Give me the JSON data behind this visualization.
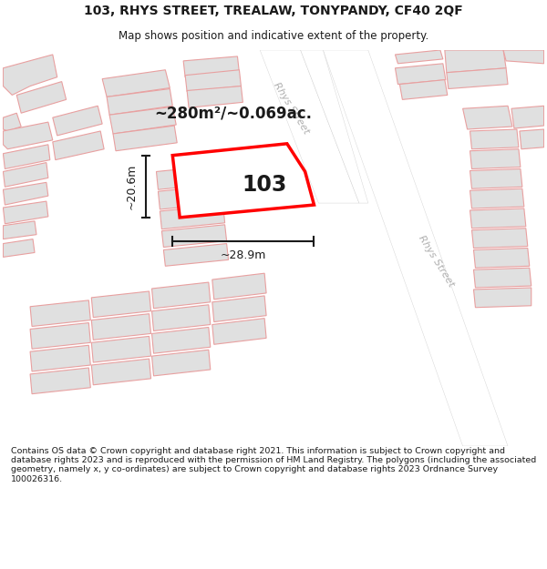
{
  "title_line1": "103, RHYS STREET, TREALAW, TONYPANDY, CF40 2QF",
  "title_line2": "Map shows position and indicative extent of the property.",
  "footer_text": "Contains OS data © Crown copyright and database right 2021. This information is subject to Crown copyright and database rights 2023 and is reproduced with the permission of HM Land Registry. The polygons (including the associated geometry, namely x, y co-ordinates) are subject to Crown copyright and database rights 2023 Ordnance Survey 100026316.",
  "area_label": "~280m²/~0.069ac.",
  "number_label": "103",
  "width_label": "~28.9m",
  "height_label": "~20.6m",
  "bg_color": "#ffffff",
  "map_bg": "#f2f2f2",
  "building_fill": "#e0e0e0",
  "building_stroke": "#e8a0a0",
  "highlight_fill": "#ffffff",
  "highlight_stroke": "#ff0000",
  "street_label_color": "#b0b0b0",
  "dim_color": "#1a1a1a",
  "title_color": "#1a1a1a",
  "footer_color": "#1a1a1a",
  "road_color": "#ffffff"
}
